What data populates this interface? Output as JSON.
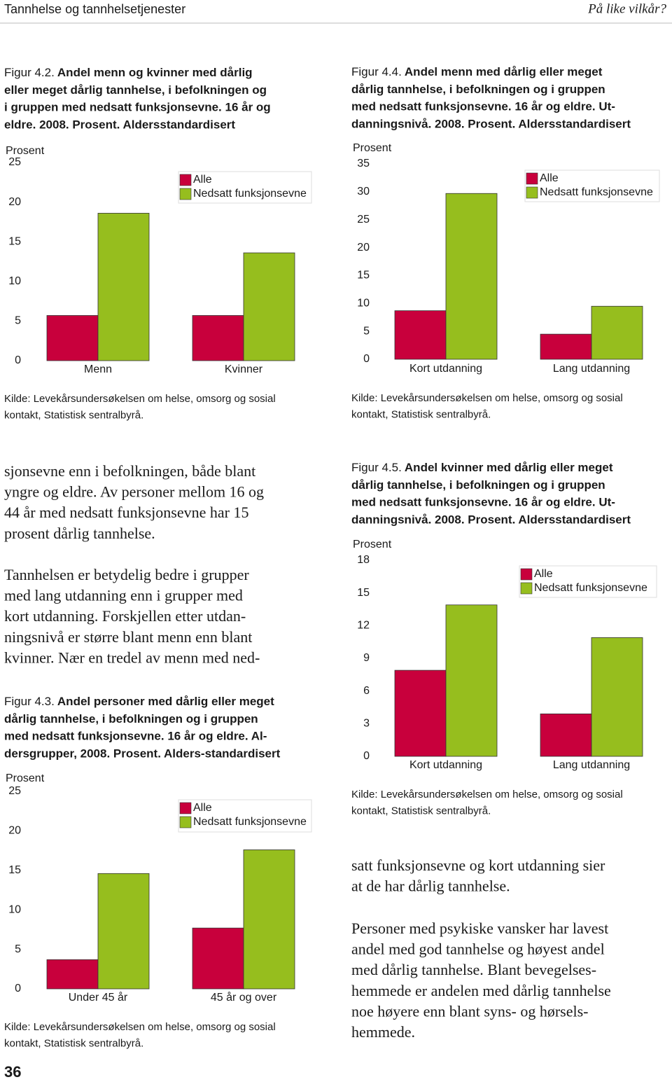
{
  "header": {
    "left": "Tannhelse og tannhelsetjenester",
    "right": "På like vilkår?"
  },
  "page_number": "36",
  "chart_data": [
    {
      "type": "bar",
      "label": "Figur 4.2.",
      "title_lines": [
        "Andel menn og kvinner med dårlig",
        "eller meget dårlig tannhelse, i befolkningen og",
        "i gruppen med nedsatt funksjonsevne. 16 år og",
        "eldre. 2008. Prosent. Aldersstandardisert"
      ],
      "y_label": "Prosent",
      "categories": [
        "Menn",
        "Kvinner"
      ],
      "series": [
        {
          "name": "Alle",
          "color": "#c8003c",
          "values": [
            5.7,
            5.7
          ]
        },
        {
          "name": "Nedsatt funksjonsevne",
          "color": "#96be1e",
          "values": [
            18.6,
            13.6
          ]
        }
      ],
      "ylim": [
        0,
        25
      ],
      "yticks": [
        0,
        5,
        10,
        15,
        20,
        25
      ],
      "legend": "top-right",
      "source_lines": [
        "Kilde: Levekårsundersøkelsen om helse, omsorg og sosial",
        "kontakt, Statistisk sentralbyrå."
      ]
    },
    {
      "type": "bar",
      "label": "Figur 4.4.",
      "title_lines": [
        "Andel menn med dårlig eller meget",
        "dårlig tannhelse, i befolkningen og i gruppen",
        "med nedsatt funksjonsevne. 16 år og eldre. Ut-",
        "danningsnivå. 2008. Prosent. Aldersstandardisert"
      ],
      "y_label": "Prosent",
      "categories": [
        "Kort utdanning",
        "Lang utdanning"
      ],
      "series": [
        {
          "name": "Alle",
          "color": "#c8003c",
          "values": [
            8.7,
            4.5
          ]
        },
        {
          "name": "Nedsatt funksjonsevne",
          "color": "#96be1e",
          "values": [
            29.7,
            9.5
          ]
        }
      ],
      "ylim": [
        0,
        35
      ],
      "yticks": [
        0,
        5,
        10,
        15,
        20,
        25,
        30,
        35
      ],
      "legend": "top-right",
      "source_lines": [
        "Kilde: Levekårsundersøkelsen om helse, omsorg og sosial",
        "kontakt, Statistisk sentralbyrå."
      ]
    },
    {
      "type": "bar",
      "label": "Figur 4.3.",
      "title_lines": [
        "Andel personer med dårlig eller meget",
        "dårlig tannhelse, i befolkningen og i gruppen",
        "med nedsatt funksjonsevne. 16 år og eldre. Al-",
        "dersgrupper, 2008. Prosent. Alders-standardisert"
      ],
      "y_label": "Prosent",
      "categories": [
        "Under 45 år",
        "45 år og over"
      ],
      "series": [
        {
          "name": "Alle",
          "color": "#c8003c",
          "values": [
            3.7,
            7.7
          ]
        },
        {
          "name": "Nedsatt funksjonsevne",
          "color": "#96be1e",
          "values": [
            14.6,
            17.6
          ]
        }
      ],
      "ylim": [
        0,
        25
      ],
      "yticks": [
        0,
        5,
        10,
        15,
        20,
        25
      ],
      "legend": "top-right",
      "source_lines": [
        "Kilde: Levekårsundersøkelsen om helse, omsorg og sosial",
        "kontakt, Statistisk sentralbyrå."
      ]
    },
    {
      "type": "bar",
      "label": "Figur 4.5.",
      "title_lines": [
        "Andel kvinner med dårlig eller meget",
        "dårlig tannhelse, i befolkningen og i gruppen",
        "med nedsatt funksjonsevne. 16 år og eldre. Ut-",
        "danningsnivå. 2008. Prosent. Aldersstandardisert"
      ],
      "y_label": "Prosent",
      "categories": [
        "Kort utdanning",
        "Lang utdanning"
      ],
      "series": [
        {
          "name": "Alle",
          "color": "#c8003c",
          "values": [
            7.9,
            3.9
          ]
        },
        {
          "name": "Nedsatt funksjonsevne",
          "color": "#96be1e",
          "values": [
            13.9,
            10.9
          ]
        }
      ],
      "ylim": [
        0,
        18
      ],
      "yticks": [
        0,
        3,
        6,
        9,
        12,
        15,
        18
      ],
      "legend": "top-right",
      "source_lines": [
        "Kilde: Levekårsundersøkelsen om helse, omsorg og sosial",
        "kontakt, Statistisk sentralbyrå."
      ]
    }
  ],
  "text": {
    "left_paragraphs": [
      [
        "sjonsevne enn i befolkningen, både blant",
        "yngre og eldre. Av personer mellom 16 og",
        "44 år med nedsatt funksjonsevne har 15",
        "prosent dårlig tannhelse."
      ],
      [
        "Tannhelsen er betydelig bedre i grupper",
        "med lang utdanning enn i grupper med",
        "kort utdanning. Forskjellen etter utdan-",
        "ningsnivå er større blant menn enn blant",
        "kvinner. Nær en tredel av menn med ned-"
      ]
    ],
    "right_paragraphs": [
      [
        "satt funksjonsevne og kort utdanning sier",
        "at de har dårlig tannhelse."
      ],
      [
        "Personer med psykiske vansker har lavest",
        "andel med god tannhelse og høyest andel",
        "med dårlig tannhelse. Blant bevegelses-",
        "hemmede er andelen med dårlig tannhelse",
        "noe høyere enn blant syns- og hørsels-",
        "hemmede."
      ]
    ]
  }
}
